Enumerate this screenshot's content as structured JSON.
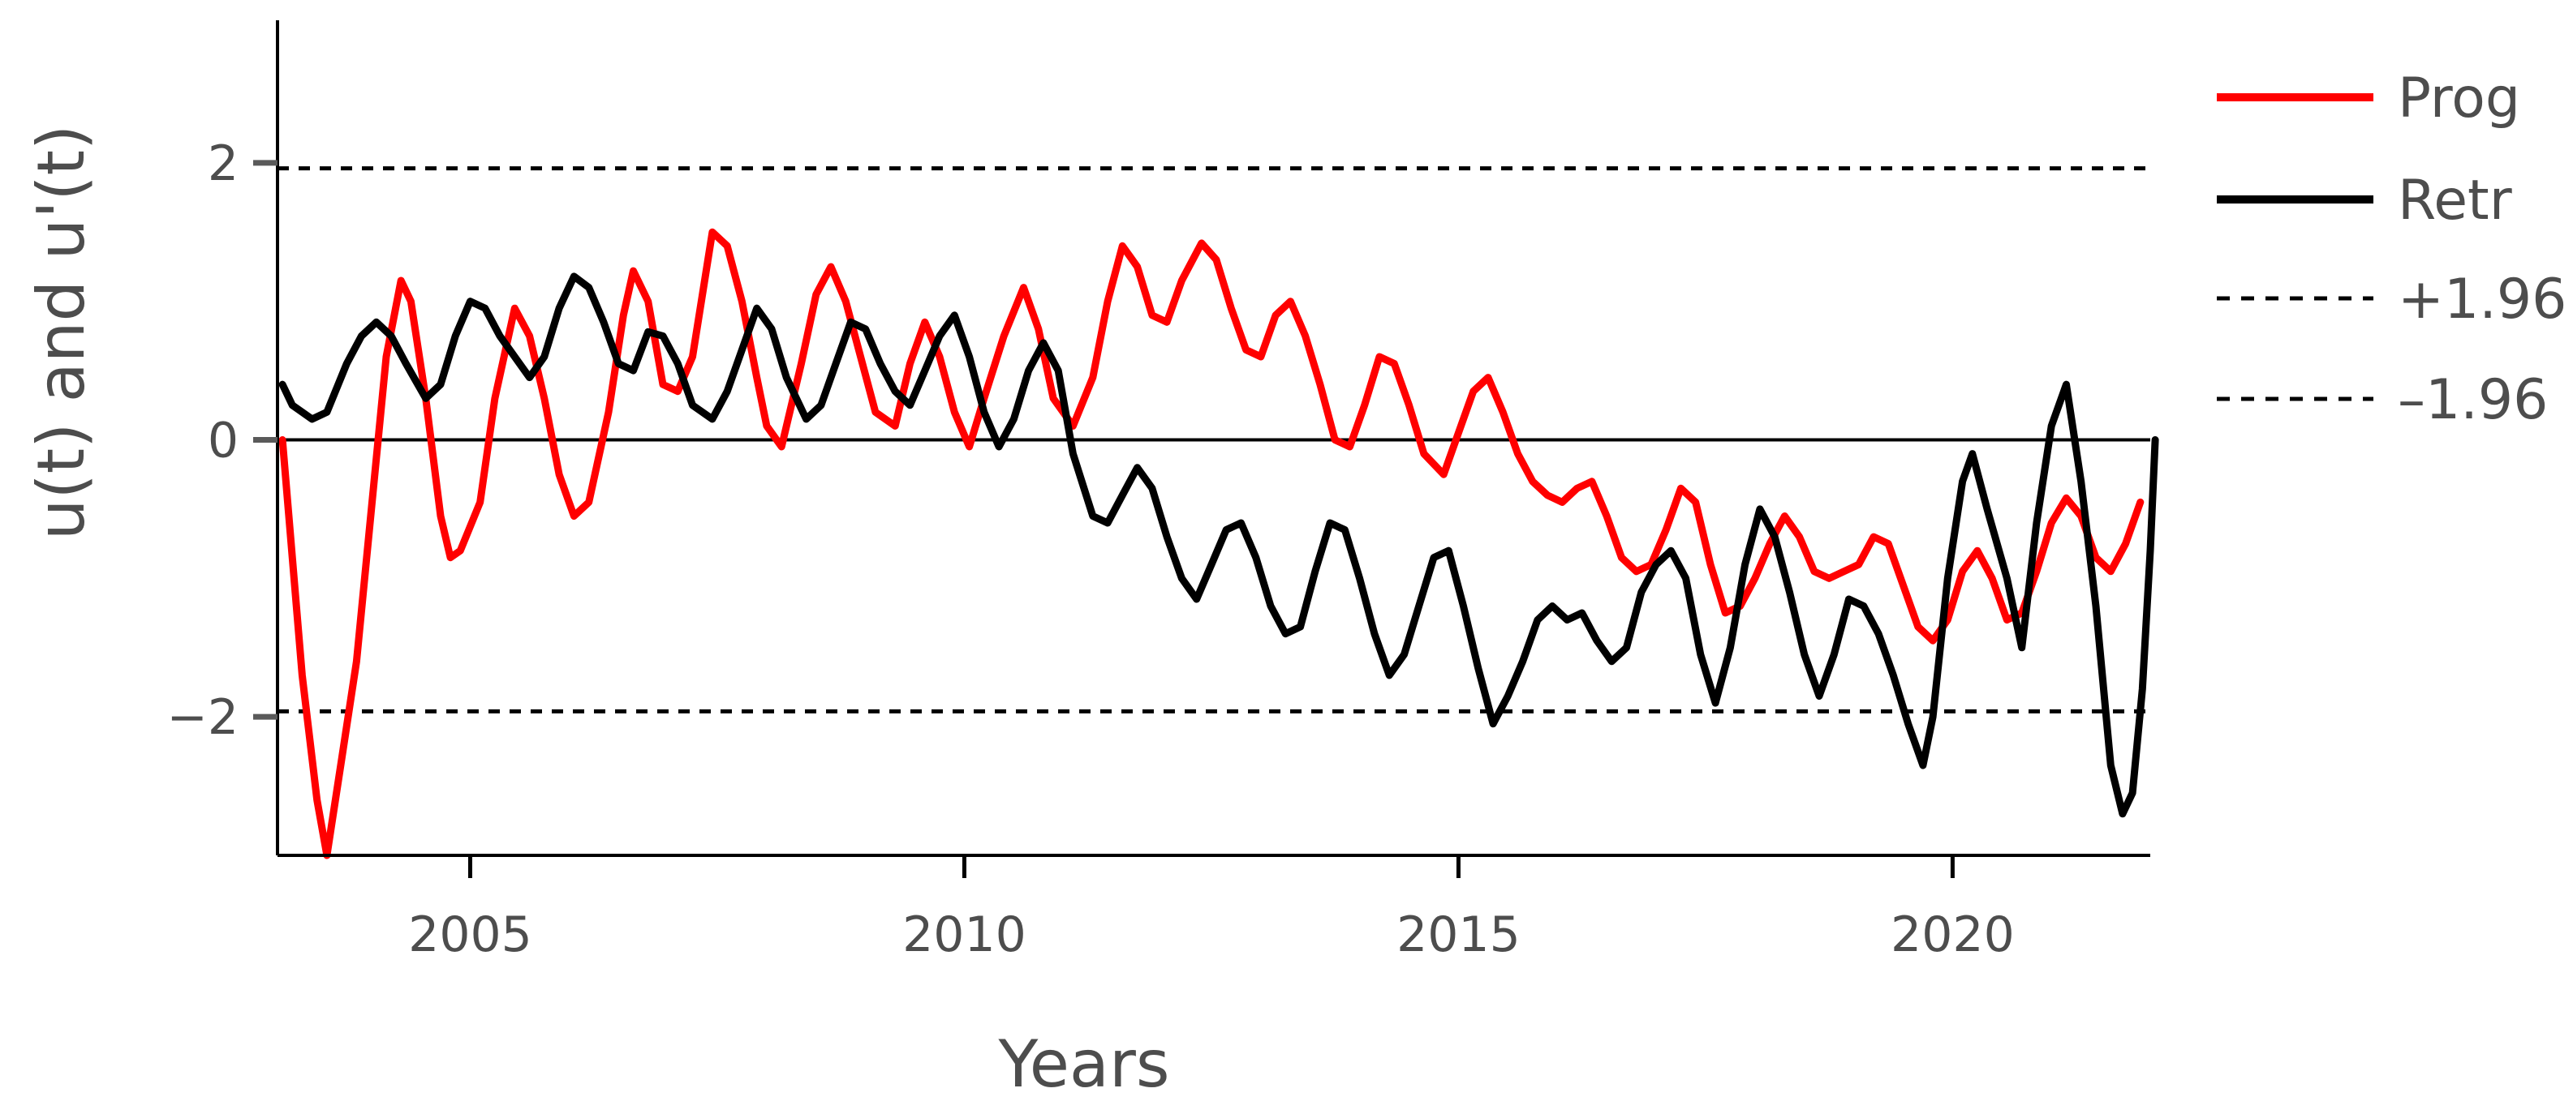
{
  "chart_data": {
    "type": "line",
    "title": "",
    "xlabel": "Years",
    "ylabel": "u(t) and u'(t)",
    "xlim": [
      2003.05,
      2022.0
    ],
    "ylim": [
      -3.0,
      3.0
    ],
    "x_ticks": [
      2005,
      2010,
      2015,
      2020
    ],
    "x_tick_labels": [
      "2005",
      "2010",
      "2015",
      "2020"
    ],
    "y_ticks": [
      2,
      0,
      -2
    ],
    "y_tick_labels": [
      "2",
      "0",
      "−2"
    ],
    "grid": false,
    "legend_position": "right",
    "reference_lines": [
      {
        "name": "+1.96",
        "y": 1.96,
        "style": "dashed",
        "color": "#000000"
      },
      {
        "name": "–1.96",
        "y": -1.96,
        "style": "dashed",
        "color": "#000000"
      },
      {
        "name": "zero",
        "y": 0,
        "style": "solid",
        "color": "#000000"
      }
    ],
    "series": [
      {
        "name": "Prog",
        "color": "#ff0000",
        "points": [
          [
            2003.1,
            0.0
          ],
          [
            2003.3,
            -1.7
          ],
          [
            2003.45,
            -2.6
          ],
          [
            2003.55,
            -3.0
          ],
          [
            2003.7,
            -2.3
          ],
          [
            2003.85,
            -1.6
          ],
          [
            2004.0,
            -0.5
          ],
          [
            2004.15,
            0.6
          ],
          [
            2004.3,
            1.15
          ],
          [
            2004.4,
            1.0
          ],
          [
            2004.55,
            0.3
          ],
          [
            2004.7,
            -0.55
          ],
          [
            2004.8,
            -0.85
          ],
          [
            2004.9,
            -0.8
          ],
          [
            2005.1,
            -0.45
          ],
          [
            2005.25,
            0.3
          ],
          [
            2005.45,
            0.95
          ],
          [
            2005.6,
            0.75
          ],
          [
            2005.75,
            0.3
          ],
          [
            2005.9,
            -0.25
          ],
          [
            2006.05,
            -0.55
          ],
          [
            2006.2,
            -0.45
          ],
          [
            2006.4,
            0.2
          ],
          [
            2006.55,
            0.9
          ],
          [
            2006.65,
            1.22
          ],
          [
            2006.8,
            1.0
          ],
          [
            2006.95,
            0.4
          ],
          [
            2007.1,
            0.35
          ],
          [
            2007.25,
            0.6
          ],
          [
            2007.45,
            1.5
          ],
          [
            2007.6,
            1.4
          ],
          [
            2007.75,
            1.0
          ],
          [
            2007.9,
            0.45
          ],
          [
            2008.0,
            0.1
          ],
          [
            2008.15,
            -0.05
          ],
          [
            2008.35,
            0.55
          ],
          [
            2008.5,
            1.05
          ],
          [
            2008.65,
            1.25
          ],
          [
            2008.8,
            1.0
          ],
          [
            2008.95,
            0.6
          ],
          [
            2009.1,
            0.2
          ],
          [
            2009.3,
            0.1
          ],
          [
            2009.45,
            0.55
          ],
          [
            2009.6,
            0.85
          ],
          [
            2009.75,
            0.6
          ],
          [
            2009.9,
            0.2
          ],
          [
            2010.05,
            -0.05
          ],
          [
            2010.2,
            0.3
          ],
          [
            2010.4,
            0.75
          ],
          [
            2010.6,
            1.1
          ],
          [
            2010.75,
            0.8
          ],
          [
            2010.9,
            0.3
          ],
          [
            2011.1,
            0.1
          ],
          [
            2011.3,
            0.45
          ],
          [
            2011.45,
            1.0
          ],
          [
            2011.6,
            1.4
          ],
          [
            2011.75,
            1.25
          ],
          [
            2011.9,
            0.9
          ],
          [
            2012.05,
            0.85
          ],
          [
            2012.2,
            1.15
          ],
          [
            2012.4,
            1.42
          ],
          [
            2012.55,
            1.3
          ],
          [
            2012.7,
            0.95
          ],
          [
            2012.85,
            0.65
          ],
          [
            2013.0,
            0.6
          ],
          [
            2013.15,
            0.9
          ],
          [
            2013.3,
            1.0
          ],
          [
            2013.45,
            0.75
          ],
          [
            2013.6,
            0.4
          ],
          [
            2013.75,
            0.0
          ],
          [
            2013.9,
            -0.05
          ],
          [
            2014.05,
            0.25
          ],
          [
            2014.2,
            0.6
          ],
          [
            2014.35,
            0.55
          ],
          [
            2014.5,
            0.25
          ],
          [
            2014.65,
            -0.1
          ],
          [
            2014.85,
            -0.25
          ],
          [
            2015.0,
            0.05
          ],
          [
            2015.15,
            0.35
          ],
          [
            2015.3,
            0.45
          ],
          [
            2015.45,
            0.2
          ],
          [
            2015.6,
            -0.1
          ],
          [
            2015.75,
            -0.3
          ],
          [
            2015.9,
            -0.4
          ],
          [
            2016.05,
            -0.45
          ],
          [
            2016.2,
            -0.35
          ],
          [
            2016.35,
            -0.3
          ],
          [
            2016.5,
            -0.55
          ],
          [
            2016.65,
            -0.85
          ],
          [
            2016.8,
            -0.95
          ],
          [
            2016.95,
            -0.9
          ],
          [
            2017.1,
            -0.65
          ],
          [
            2017.25,
            -0.35
          ],
          [
            2017.4,
            -0.45
          ],
          [
            2017.55,
            -0.9
          ],
          [
            2017.7,
            -1.25
          ],
          [
            2017.85,
            -1.2
          ],
          [
            2018.0,
            -1.0
          ],
          [
            2018.15,
            -0.75
          ],
          [
            2018.3,
            -0.55
          ],
          [
            2018.45,
            -0.7
          ],
          [
            2018.6,
            -0.95
          ],
          [
            2018.75,
            -1.0
          ],
          [
            2018.9,
            -0.95
          ],
          [
            2019.05,
            -0.9
          ],
          [
            2019.2,
            -0.7
          ],
          [
            2019.35,
            -0.75
          ],
          [
            2019.5,
            -1.05
          ],
          [
            2019.65,
            -1.35
          ],
          [
            2019.8,
            -1.45
          ],
          [
            2019.95,
            -1.3
          ],
          [
            2020.1,
            -0.95
          ],
          [
            2020.25,
            -0.8
          ],
          [
            2020.4,
            -1.0
          ],
          [
            2020.55,
            -1.3
          ],
          [
            2020.7,
            -1.25
          ],
          [
            2020.85,
            -0.95
          ],
          [
            2021.0,
            -0.6
          ],
          [
            2021.15,
            -0.42
          ],
          [
            2021.3,
            -0.55
          ],
          [
            2021.45,
            -0.85
          ],
          [
            2021.6,
            -0.95
          ],
          [
            2021.75,
            -0.75
          ],
          [
            2021.9,
            -0.45
          ]
        ]
      },
      {
        "name": "Retr",
        "color": "#000000",
        "points": [
          [
            2003.1,
            0.4
          ],
          [
            2003.2,
            0.25
          ],
          [
            2003.4,
            0.15
          ],
          [
            2003.55,
            0.2
          ],
          [
            2003.75,
            0.55
          ],
          [
            2003.9,
            0.75
          ],
          [
            2004.05,
            0.85
          ],
          [
            2004.2,
            0.75
          ],
          [
            2004.35,
            0.55
          ],
          [
            2004.55,
            0.3
          ],
          [
            2004.7,
            0.4
          ],
          [
            2004.85,
            0.75
          ],
          [
            2005.0,
            1.0
          ],
          [
            2005.15,
            0.95
          ],
          [
            2005.3,
            0.75
          ],
          [
            2005.45,
            0.6
          ],
          [
            2005.6,
            0.45
          ],
          [
            2005.75,
            0.6
          ],
          [
            2005.9,
            0.95
          ],
          [
            2006.05,
            1.18
          ],
          [
            2006.2,
            1.1
          ],
          [
            2006.35,
            0.85
          ],
          [
            2006.5,
            0.55
          ],
          [
            2006.65,
            0.5
          ],
          [
            2006.8,
            0.78
          ],
          [
            2006.95,
            0.75
          ],
          [
            2007.1,
            0.55
          ],
          [
            2007.25,
            0.25
          ],
          [
            2007.45,
            0.15
          ],
          [
            2007.6,
            0.35
          ],
          [
            2007.75,
            0.65
          ],
          [
            2007.9,
            0.95
          ],
          [
            2008.05,
            0.8
          ],
          [
            2008.2,
            0.45
          ],
          [
            2008.4,
            0.15
          ],
          [
            2008.55,
            0.25
          ],
          [
            2008.7,
            0.55
          ],
          [
            2008.85,
            0.85
          ],
          [
            2009.0,
            0.8
          ],
          [
            2009.15,
            0.55
          ],
          [
            2009.3,
            0.35
          ],
          [
            2009.45,
            0.25
          ],
          [
            2009.6,
            0.5
          ],
          [
            2009.75,
            0.75
          ],
          [
            2009.9,
            0.9
          ],
          [
            2010.05,
            0.6
          ],
          [
            2010.2,
            0.2
          ],
          [
            2010.35,
            -0.05
          ],
          [
            2010.5,
            0.15
          ],
          [
            2010.65,
            0.5
          ],
          [
            2010.8,
            0.7
          ],
          [
            2010.95,
            0.5
          ],
          [
            2011.1,
            -0.1
          ],
          [
            2011.3,
            -0.55
          ],
          [
            2011.45,
            -0.6
          ],
          [
            2011.6,
            -0.4
          ],
          [
            2011.75,
            -0.2
          ],
          [
            2011.9,
            -0.35
          ],
          [
            2012.05,
            -0.7
          ],
          [
            2012.2,
            -1.0
          ],
          [
            2012.35,
            -1.15
          ],
          [
            2012.5,
            -0.9
          ],
          [
            2012.65,
            -0.65
          ],
          [
            2012.8,
            -0.6
          ],
          [
            2012.95,
            -0.85
          ],
          [
            2013.1,
            -1.2
          ],
          [
            2013.25,
            -1.4
          ],
          [
            2013.4,
            -1.35
          ],
          [
            2013.55,
            -0.95
          ],
          [
            2013.7,
            -0.6
          ],
          [
            2013.85,
            -0.65
          ],
          [
            2014.0,
            -1.0
          ],
          [
            2014.15,
            -1.4
          ],
          [
            2014.3,
            -1.7
          ],
          [
            2014.45,
            -1.55
          ],
          [
            2014.6,
            -1.2
          ],
          [
            2014.75,
            -0.85
          ],
          [
            2014.9,
            -0.8
          ],
          [
            2015.05,
            -1.2
          ],
          [
            2015.2,
            -1.65
          ],
          [
            2015.35,
            -2.05
          ],
          [
            2015.5,
            -1.85
          ],
          [
            2015.65,
            -1.6
          ],
          [
            2015.8,
            -1.3
          ],
          [
            2015.95,
            -1.2
          ],
          [
            2016.1,
            -1.3
          ],
          [
            2016.25,
            -1.25
          ],
          [
            2016.4,
            -1.45
          ],
          [
            2016.55,
            -1.6
          ],
          [
            2016.7,
            -1.5
          ],
          [
            2016.85,
            -1.1
          ],
          [
            2017.0,
            -0.9
          ],
          [
            2017.15,
            -0.8
          ],
          [
            2017.3,
            -1.0
          ],
          [
            2017.45,
            -1.55
          ],
          [
            2017.6,
            -1.9
          ],
          [
            2017.75,
            -1.5
          ],
          [
            2017.9,
            -0.9
          ],
          [
            2018.05,
            -0.5
          ],
          [
            2018.2,
            -0.7
          ],
          [
            2018.35,
            -1.1
          ],
          [
            2018.5,
            -1.55
          ],
          [
            2018.65,
            -1.85
          ],
          [
            2018.8,
            -1.55
          ],
          [
            2018.95,
            -1.15
          ],
          [
            2019.1,
            -1.2
          ],
          [
            2019.25,
            -1.4
          ],
          [
            2019.4,
            -1.7
          ],
          [
            2019.55,
            -2.05
          ],
          [
            2019.7,
            -2.35
          ],
          [
            2019.8,
            -2.0
          ],
          [
            2019.95,
            -1.0
          ],
          [
            2020.1,
            -0.3
          ],
          [
            2020.2,
            -0.1
          ],
          [
            2020.35,
            -0.5
          ],
          [
            2020.55,
            -1.0
          ],
          [
            2020.7,
            -1.5
          ],
          [
            2020.85,
            -0.6
          ],
          [
            2021.0,
            0.1
          ],
          [
            2021.15,
            0.4
          ],
          [
            2021.3,
            -0.3
          ],
          [
            2021.45,
            -1.2
          ],
          [
            2021.6,
            -2.35
          ],
          [
            2021.72,
            -2.7
          ],
          [
            2021.82,
            -2.55
          ],
          [
            2021.92,
            -1.8
          ],
          [
            2022.0,
            -0.8
          ],
          [
            2022.05,
            0.0
          ]
        ]
      }
    ]
  },
  "legend": {
    "items": [
      {
        "label": "Prog",
        "color": "#ff0000",
        "style": "solid"
      },
      {
        "label": "Retr",
        "color": "#000000",
        "style": "solid"
      },
      {
        "label": "+1.96",
        "color": "#000000",
        "style": "dashed"
      },
      {
        "label": "–1.96",
        "color": "#000000",
        "style": "dashed"
      }
    ]
  }
}
